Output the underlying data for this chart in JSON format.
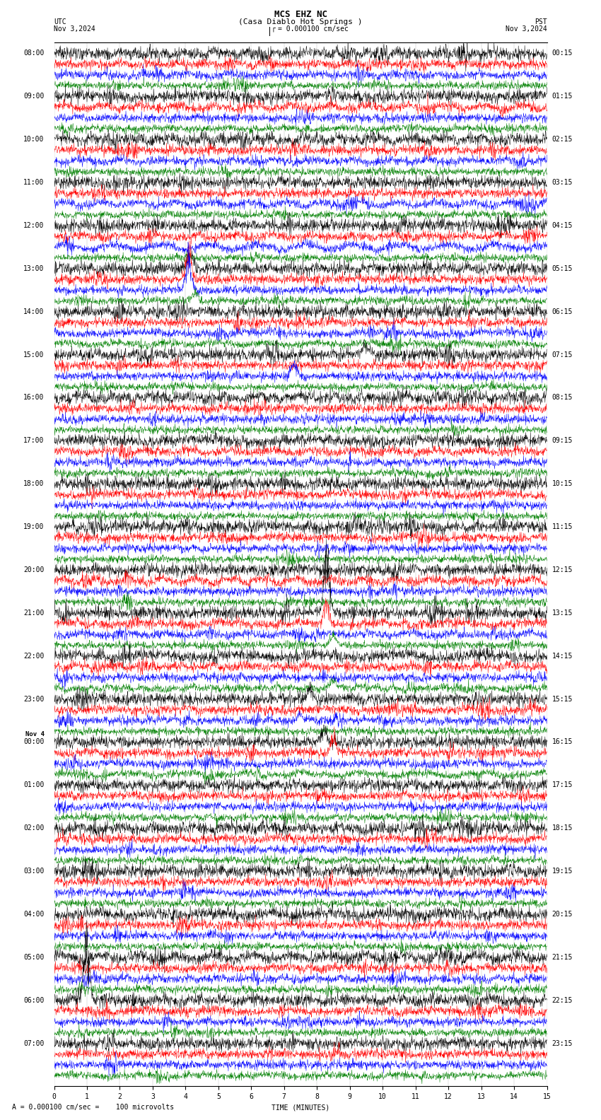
{
  "title_line1": "MCS EHZ NC",
  "title_line2": "(Casa Diablo Hot Springs )",
  "scale_text": "= 0.000100 cm/sec",
  "bottom_text": "A = 0.000100 cm/sec =    100 microvolts",
  "utc_label": "UTC",
  "pst_label": "PST",
  "date_left": "Nov 3,2024",
  "date_right": "Nov 3,2024",
  "xlabel": "TIME (MINUTES)",
  "xmin": 0,
  "xmax": 15,
  "xticks": [
    0,
    1,
    2,
    3,
    4,
    5,
    6,
    7,
    8,
    9,
    10,
    11,
    12,
    13,
    14,
    15
  ],
  "left_times": [
    "08:00",
    "09:00",
    "10:00",
    "11:00",
    "12:00",
    "13:00",
    "14:00",
    "15:00",
    "16:00",
    "17:00",
    "18:00",
    "19:00",
    "20:00",
    "21:00",
    "22:00",
    "23:00",
    "00:00",
    "01:00",
    "02:00",
    "03:00",
    "04:00",
    "05:00",
    "06:00",
    "07:00"
  ],
  "nov4_row": 16,
  "right_times": [
    "00:15",
    "01:15",
    "02:15",
    "03:15",
    "04:15",
    "05:15",
    "06:15",
    "07:15",
    "08:15",
    "09:15",
    "10:15",
    "11:15",
    "12:15",
    "13:15",
    "14:15",
    "15:15",
    "16:15",
    "17:15",
    "18:15",
    "19:15",
    "20:15",
    "21:15",
    "22:15",
    "23:15"
  ],
  "trace_colors": [
    "black",
    "red",
    "blue",
    "green"
  ],
  "num_rows": 24,
  "traces_per_row": 4,
  "bg_color": "white",
  "font_size_title": 9,
  "font_size_labels": 7,
  "font_size_axis": 7
}
